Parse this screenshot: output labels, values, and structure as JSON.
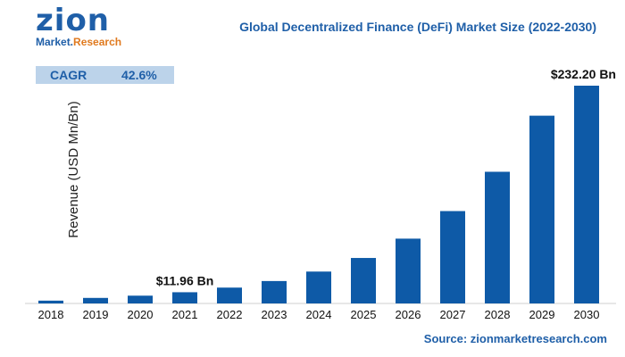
{
  "logo": {
    "main": "zion",
    "sub_a": "Market.",
    "sub_b": "Research"
  },
  "chart_data": {
    "type": "bar",
    "title": "Global Decentralized Finance (DeFi) Market Size (2022-2030)",
    "ylabel": "Revenue (USD Mn/Bn)",
    "xlabel": "",
    "categories": [
      "2018",
      "2019",
      "2020",
      "2021",
      "2022",
      "2023",
      "2024",
      "2025",
      "2026",
      "2027",
      "2028",
      "2029",
      "2030"
    ],
    "values": [
      3.0,
      5.9,
      8.3,
      11.96,
      16.9,
      23.9,
      34.0,
      48.5,
      69.1,
      98.5,
      140.4,
      200.2,
      232.2
    ],
    "annotations": [
      {
        "category": "2021",
        "label": "$11.96 Bn"
      },
      {
        "category": "2030",
        "label": "$232.20 Bn"
      }
    ],
    "bar_color": "#0e5aa7"
  },
  "cagr": {
    "label": "CAGR",
    "value": "42.6%"
  },
  "source": "Source: zionmarketresearch.com"
}
